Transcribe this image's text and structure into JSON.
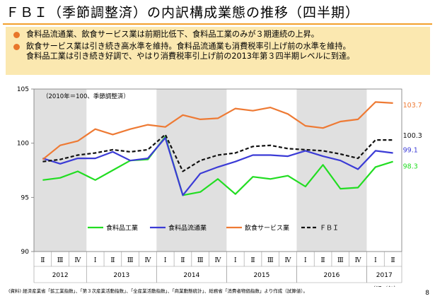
{
  "page": {
    "title": "ＦＢＩ（季節調整済）の内訳構成業態の推移（四半期）",
    "bullets": [
      "食料品流通業、飲食サービス業は前期比低下、食料品工業のみが３期連続の上昇。",
      "飲食サービス業は引き続き高水準を維持。食料品流通業も消費税率引上げ前の水準を維持。\n食料品工業は引き続き好調で、やはり消費税率引上げ前の2013年第３四半期レベルに到達。"
    ],
    "source": "(資料) 経済産業省「鉱工業指数」、「第３次産業活動指数」、「全産業活動指数」、「商業動態統計」、総務省「消費者物価指数」より作成（試算値）。",
    "page_number": "8"
  },
  "colors": {
    "accent": "#e8762a",
    "banner": "#fbe8b0",
    "band": "#e0e0e0"
  },
  "chart_data": {
    "type": "line",
    "note": "（2010年＝100、季節調整済）",
    "ylim": [
      90,
      105
    ],
    "yticks": [
      90,
      95,
      100,
      105
    ],
    "quarters": [
      "Ⅱ",
      "Ⅲ",
      "Ⅳ",
      "Ⅰ",
      "Ⅱ",
      "Ⅲ",
      "Ⅳ",
      "Ⅰ",
      "Ⅱ",
      "Ⅲ",
      "Ⅳ",
      "Ⅰ",
      "Ⅱ",
      "Ⅲ",
      "Ⅳ",
      "Ⅰ",
      "Ⅱ",
      "Ⅲ",
      "Ⅳ",
      "Ⅰ",
      "Ⅱ"
    ],
    "years": [
      {
        "label": "2012",
        "start": 0,
        "end": 2
      },
      {
        "label": "2013",
        "start": 3,
        "end": 6
      },
      {
        "label": "2014",
        "start": 7,
        "end": 10
      },
      {
        "label": "2015",
        "start": 11,
        "end": 14
      },
      {
        "label": "2016",
        "start": 15,
        "end": 18
      },
      {
        "label": "2017",
        "start": 19,
        "end": 20
      }
    ],
    "period_unit": "（期／年）",
    "shaded_years": [
      "2012",
      "2014",
      "2016"
    ],
    "series": [
      {
        "name": "食料品工業",
        "color": "#22dd22",
        "dash": false,
        "values": [
          96.6,
          96.8,
          97.4,
          96.6,
          97.5,
          98.4,
          98.5,
          100.6,
          95.2,
          95.5,
          96.7,
          95.3,
          96.9,
          96.7,
          97.0,
          96.0,
          98.0,
          95.8,
          95.9,
          97.8,
          98.3
        ],
        "end_label": "98.3"
      },
      {
        "name": "食料品流通業",
        "color": "#3b3bd6",
        "dash": false,
        "values": [
          98.6,
          98.1,
          98.6,
          98.6,
          99.2,
          98.4,
          98.6,
          100.5,
          95.2,
          97.2,
          97.8,
          98.3,
          98.9,
          98.9,
          98.8,
          99.3,
          98.8,
          98.4,
          97.6,
          99.3,
          99.1
        ],
        "end_label": "99.1"
      },
      {
        "name": "飲食サービス業",
        "color": "#ee7a34",
        "dash": false,
        "values": [
          98.5,
          99.8,
          100.2,
          101.3,
          100.8,
          101.3,
          101.7,
          101.5,
          102.6,
          102.2,
          102.3,
          103.2,
          103.0,
          103.3,
          102.7,
          101.6,
          101.4,
          102.0,
          102.2,
          103.8,
          103.7
        ],
        "end_label": "103.7"
      },
      {
        "name": "ＦＢＩ",
        "color": "#111111",
        "dash": true,
        "values": [
          98.3,
          98.5,
          98.9,
          99.1,
          99.4,
          99.2,
          99.4,
          100.8,
          97.4,
          98.4,
          98.9,
          99.1,
          99.7,
          99.8,
          99.5,
          99.4,
          99.3,
          99.0,
          98.6,
          100.3,
          100.3
        ],
        "end_label": "100.3"
      }
    ]
  }
}
